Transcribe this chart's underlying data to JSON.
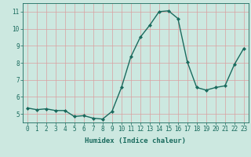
{
  "x": [
    0,
    1,
    2,
    3,
    4,
    5,
    6,
    7,
    8,
    9,
    10,
    11,
    12,
    13,
    14,
    15,
    16,
    17,
    18,
    19,
    20,
    21,
    22,
    23
  ],
  "y": [
    5.35,
    5.25,
    5.3,
    5.2,
    5.2,
    4.85,
    4.9,
    4.75,
    4.7,
    5.15,
    6.55,
    8.35,
    9.5,
    10.2,
    11.0,
    11.05,
    10.6,
    8.05,
    6.55,
    6.4,
    6.55,
    6.65,
    7.9,
    8.85
  ],
  "line_color": "#1a6b5e",
  "marker": "D",
  "markersize": 2.0,
  "linewidth": 1.0,
  "bg_color": "#cce8e0",
  "grid_color_major": "#d9a0a0",
  "grid_color_minor": "#d9a0a0",
  "xlabel": "Humidex (Indice chaleur)",
  "ylim": [
    4.5,
    11.5
  ],
  "xlim": [
    -0.5,
    23.5
  ],
  "yticks": [
    5,
    6,
    7,
    8,
    9,
    10,
    11
  ],
  "xticks": [
    0,
    1,
    2,
    3,
    4,
    5,
    6,
    7,
    8,
    9,
    10,
    11,
    12,
    13,
    14,
    15,
    16,
    17,
    18,
    19,
    20,
    21,
    22,
    23
  ],
  "tick_fontsize": 5.5,
  "xlabel_fontsize": 6.5,
  "tick_color": "#1a6b5e"
}
